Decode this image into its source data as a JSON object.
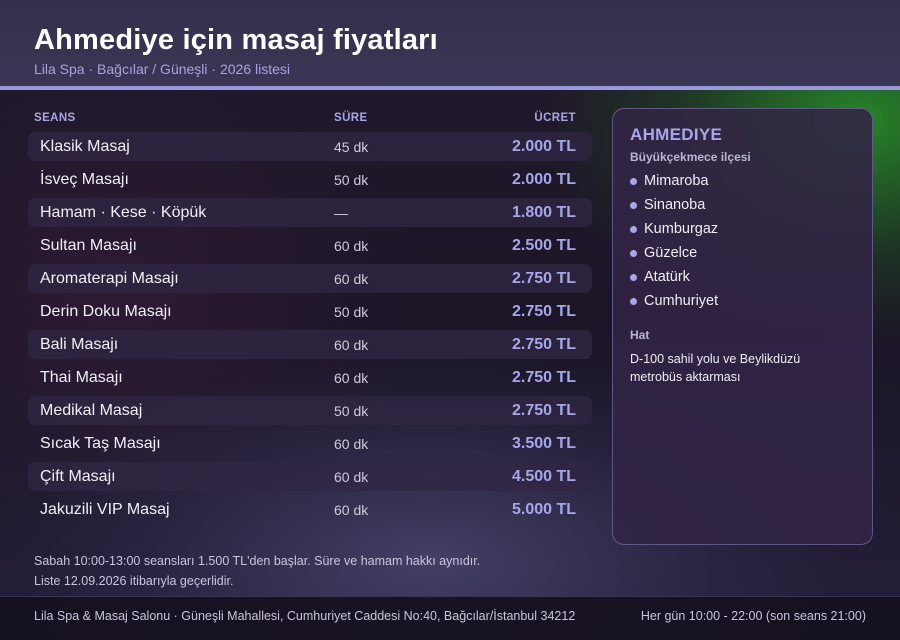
{
  "header": {
    "title": "Ahmediye için masaj fiyatları",
    "subtitle": "Lila Spa · Bağcılar / Güneşli · 2026 listesi"
  },
  "table": {
    "columns": [
      "SEANS",
      "SÜRE",
      "ÜCRET"
    ],
    "rows": [
      {
        "name": "Klasik Masaj",
        "duration": "45 dk",
        "price": "2.000 TL"
      },
      {
        "name": "İsveç Masajı",
        "duration": "50 dk",
        "price": "2.000 TL"
      },
      {
        "name": "Hamam · Kese · Köpük",
        "duration": "—",
        "price": "1.800 TL"
      },
      {
        "name": "Sultan Masajı",
        "duration": "60 dk",
        "price": "2.500 TL"
      },
      {
        "name": "Aromaterapi Masajı",
        "duration": "60 dk",
        "price": "2.750 TL"
      },
      {
        "name": "Derin Doku Masajı",
        "duration": "50 dk",
        "price": "2.750 TL"
      },
      {
        "name": "Bali Masajı",
        "duration": "60 dk",
        "price": "2.750 TL"
      },
      {
        "name": "Thai Masajı",
        "duration": "60 dk",
        "price": "2.750 TL"
      },
      {
        "name": "Medikal Masaj",
        "duration": "50 dk",
        "price": "2.750 TL"
      },
      {
        "name": "Sıcak Taş Masajı",
        "duration": "60 dk",
        "price": "3.500 TL"
      },
      {
        "name": "Çift Masajı",
        "duration": "60 dk",
        "price": "4.500 TL"
      },
      {
        "name": "Jakuzili VIP Masaj",
        "duration": "60 dk",
        "price": "5.000 TL"
      }
    ]
  },
  "panel": {
    "title": "AHMEDIYE",
    "subtitle": "Büyükçekmece ilçesi",
    "neighborhoods": [
      "Mimaroba",
      "Sinanoba",
      "Kumburgaz",
      "Güzelce",
      "Atatürk",
      "Cumhuriyet"
    ],
    "hat_label": "Hat",
    "hat_text": "D-100 sahil yolu ve Beylikdüzü metrobüs aktarması"
  },
  "notes": [
    "Sabah 10:00-13:00 seansları 1.500 TL'den başlar. Süre ve hamam hakkı aynıdır.",
    "Liste 12.09.2026 itibarıyla geçerlidir."
  ],
  "footer": {
    "address": "Lila Spa & Masaj Salonu · Güneşli Mahallesi, Cumhuriyet Caddesi No:40, Bağcılar/İstanbul 34212",
    "hours": "Her gün 10:00 - 22:00 (son seans 21:00)"
  },
  "colors": {
    "accent": "#a9a6ea",
    "header_bg": "#36324f",
    "header_border": "#9b98e0"
  }
}
